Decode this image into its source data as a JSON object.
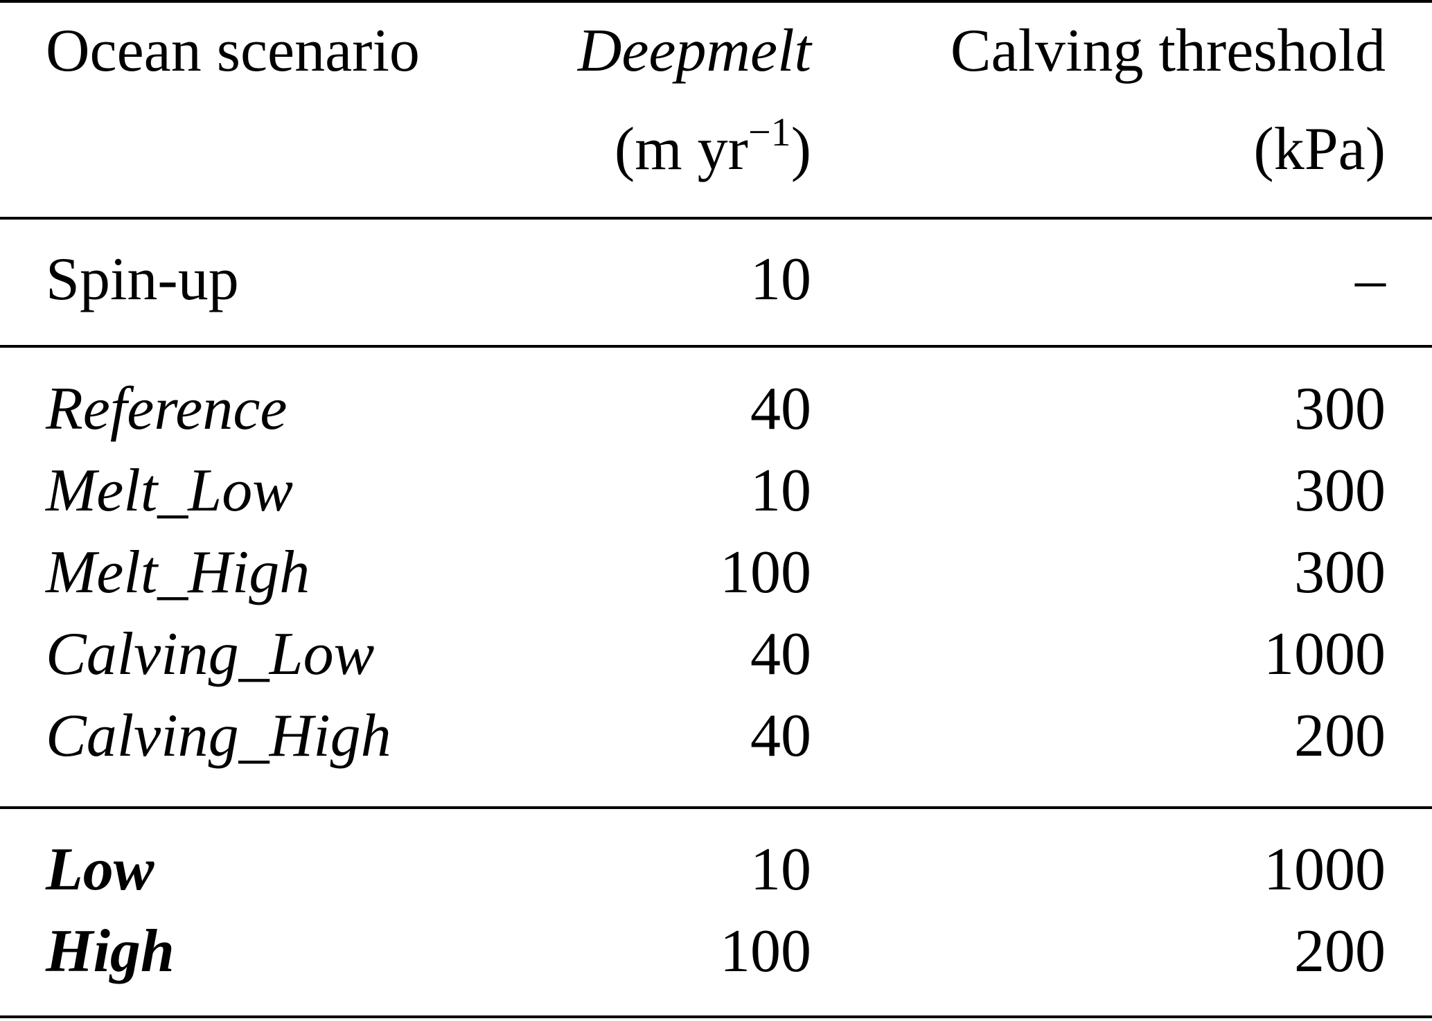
{
  "table": {
    "header": {
      "col1": "Ocean scenario",
      "col2_line1": "Deepmelt",
      "col2_line2_prefix": "(m yr",
      "col2_line2_sup": "−1",
      "col2_line2_suffix": ")",
      "col3_line1": "Calving threshold",
      "col3_line2": "(kPa)"
    },
    "spinup": {
      "scenario": "Spin-up",
      "deepmelt": "10",
      "calving": "–"
    },
    "rows": [
      {
        "scenario": "Reference",
        "deepmelt": "40",
        "calving": "300"
      },
      {
        "scenario": "Melt_Low",
        "deepmelt": "10",
        "calving": "300"
      },
      {
        "scenario": "Melt_High",
        "deepmelt": "100",
        "calving": "300"
      },
      {
        "scenario": "Calving_Low",
        "deepmelt": "40",
        "calving": "1000"
      },
      {
        "scenario": "Calving_High",
        "deepmelt": "40",
        "calving": "200"
      }
    ],
    "extremes": [
      {
        "scenario": "Low",
        "deepmelt": "10",
        "calving": "1000"
      },
      {
        "scenario": "High",
        "deepmelt": "100",
        "calving": "200"
      }
    ]
  }
}
